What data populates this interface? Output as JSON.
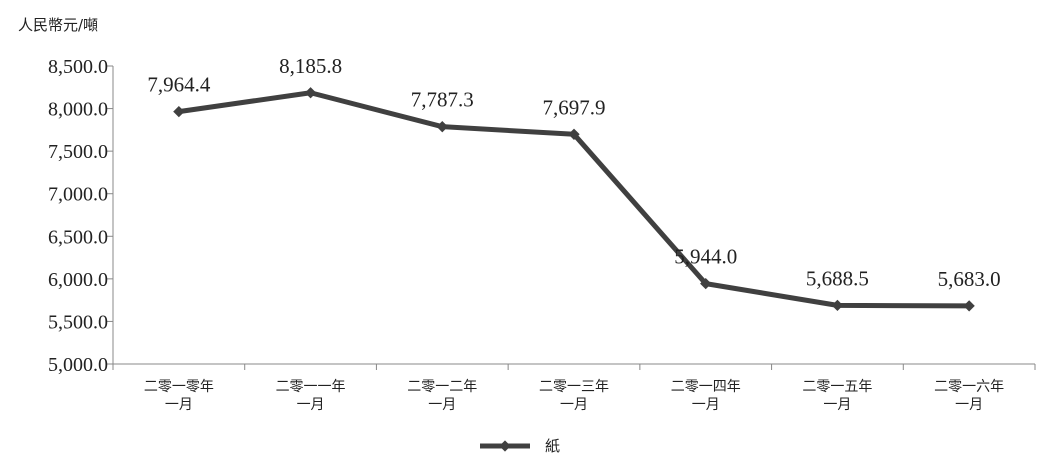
{
  "chart_data": {
    "type": "line",
    "unit_label": "人民幣元/噸",
    "categories": [
      [
        "二零一零年",
        "一月"
      ],
      [
        "二零一一年",
        "一月"
      ],
      [
        "二零一二年",
        "一月"
      ],
      [
        "二零一三年",
        "一月"
      ],
      [
        "二零一四年",
        "一月"
      ],
      [
        "二零一五年",
        "一月"
      ],
      [
        "二零一六年",
        "一月"
      ]
    ],
    "series": [
      {
        "name": "紙",
        "values": [
          7964.4,
          8185.8,
          7787.3,
          7697.9,
          5944.0,
          5688.5,
          5683.0
        ],
        "value_labels": [
          "7,964.4",
          "8,185.8",
          "7,787.3",
          "7,697.9",
          "5,944.0",
          "5,688.5",
          "5,683.0"
        ]
      }
    ],
    "ylim": [
      5000,
      8500
    ],
    "yticks": [
      5000,
      5500,
      6000,
      6500,
      7000,
      7500,
      8000,
      8500
    ],
    "ytick_labels": [
      "5,000.0",
      "5,500.0",
      "6,000.0",
      "6,500.0",
      "7,000.0",
      "7,500.0",
      "8,000.0",
      "8,500.0"
    ],
    "grid": false,
    "legend_position": "bottom",
    "line_color": "#404040"
  }
}
